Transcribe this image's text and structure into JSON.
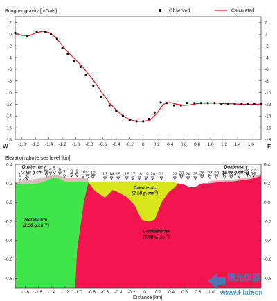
{
  "colors": {
    "observed": "#000000",
    "calculated": "#e0242b",
    "metabazite": "#3ee64a",
    "granodiorite": "#f4144f",
    "caenozoic": "#d9e61c",
    "quaternary": "#d8bcbc",
    "watermark": "#2e87c9"
  },
  "chart_data": [
    {
      "type": "line",
      "title": "Bouguer gravity [mGals]",
      "xlabel": "",
      "xlim": [
        -1.9,
        1.75
      ],
      "ylim": [
        -18,
        3
      ],
      "x_ticks": [
        -1.8,
        -1.6,
        -1.4,
        -1.2,
        -1.0,
        -0.8,
        -0.6,
        -0.4,
        -0.2,
        0,
        0.2,
        0.4,
        0.6,
        0.8,
        1.0,
        1.2,
        1.4,
        1.6
      ],
      "x_tick_labels": [
        "-1.8",
        "-1.6",
        "-1.4",
        "-1.2",
        "-1.0",
        "-0.8",
        "-0.6",
        "-0.4",
        "-0.2",
        "0",
        "0.2",
        "0.4",
        "0.6",
        "0.8",
        "1.0",
        "1.2",
        "1.4",
        "1.6"
      ],
      "y_ticks": [
        2,
        0,
        -2,
        -4,
        -6,
        -8,
        -10,
        -12,
        -14,
        -16,
        -18
      ],
      "y_tick_labels": [
        "2",
        "0",
        "-2",
        "-4",
        "-6",
        "-8",
        "-10",
        "-12",
        "-14",
        "-16",
        "-18"
      ],
      "legend": [
        {
          "name": "Observed",
          "marker": "dot"
        },
        {
          "name": "Calculated",
          "marker": "line"
        }
      ],
      "legend_position": "top-right",
      "direction_labels": {
        "west": "W",
        "east": "E"
      },
      "series": [
        {
          "name": "Observed",
          "x": [
            -1.9,
            -1.73,
            -1.58,
            -1.45,
            -1.37,
            -1.28,
            -1.2,
            -1.12,
            -1.02,
            -0.93,
            -0.85,
            -0.74,
            -0.62,
            -0.5,
            -0.4,
            -0.3,
            -0.2,
            -0.1,
            0.0,
            0.08,
            0.17,
            0.26,
            0.35,
            0.46,
            0.56,
            0.65,
            0.76,
            0.86,
            0.96,
            1.06,
            1.16,
            1.26,
            1.36,
            1.46,
            1.55,
            1.65,
            1.75
          ],
          "y": [
            0.2,
            -0.4,
            0.4,
            0.4,
            0.0,
            -0.8,
            -2.4,
            -3.4,
            -4.6,
            -5.6,
            -7.0,
            -8.8,
            -10.8,
            -12.2,
            -13.1,
            -14.0,
            -14.7,
            -14.9,
            -14.9,
            -14.5,
            -13.4,
            -11.7,
            -11.8,
            -12.2,
            -12.2,
            -11.8,
            -11.8,
            -11.8,
            -11.8,
            -11.8,
            -11.9,
            -12.0,
            -12.0,
            -12.0,
            -12.0,
            -12.0,
            -12.0
          ],
          "y_alt": []
        },
        {
          "name": "Calculated",
          "x": [
            -1.9,
            -1.8,
            -1.7,
            -1.6,
            -1.5,
            -1.4,
            -1.3,
            -1.2,
            -1.1,
            -1.0,
            -0.9,
            -0.8,
            -0.7,
            -0.6,
            -0.5,
            -0.4,
            -0.3,
            -0.2,
            -0.1,
            0.0,
            0.1,
            0.2,
            0.3,
            0.4,
            0.5,
            0.6,
            0.7,
            0.8,
            0.9,
            1.0,
            1.1,
            1.2,
            1.3,
            1.4,
            1.5,
            1.6,
            1.7,
            1.75
          ],
          "y": [
            0.2,
            -0.2,
            -0.3,
            0.2,
            0.5,
            0.3,
            -0.5,
            -2.0,
            -3.3,
            -4.4,
            -5.6,
            -7.0,
            -8.5,
            -10.2,
            -11.8,
            -13.0,
            -14.0,
            -14.6,
            -14.9,
            -14.9,
            -14.7,
            -13.6,
            -12.0,
            -11.7,
            -12.0,
            -12.2,
            -12.1,
            -11.9,
            -11.8,
            -11.8,
            -11.8,
            -11.9,
            -11.9,
            -12.0,
            -12.0,
            -12.0,
            -12.0,
            -12.0
          ]
        }
      ]
    },
    {
      "type": "area",
      "title": "Elevation above sea level [km]",
      "xlabel": "Distance [km]",
      "xlim": [
        -1.95,
        1.75
      ],
      "ylim": [
        -0.9,
        0.4
      ],
      "x_ticks": [
        -1.8,
        -1.6,
        -1.4,
        -1.2,
        -1.0,
        -0.8,
        -0.6,
        -0.4,
        -0.2,
        0,
        0.2,
        0.4,
        0.6,
        0.8,
        1.0,
        1.2,
        1.4,
        1.6
      ],
      "x_tick_labels": [
        "-1.8",
        "-1.6",
        "-1.4",
        "-1.2",
        "-1.0",
        "-0.8",
        "-0.6",
        "-0.4",
        "-0.2",
        "0",
        "0.2",
        "0.4",
        "0.6",
        "0.8",
        "1.0",
        "1.2",
        "1.4",
        "1.6"
      ],
      "y_ticks": [
        0.4,
        0.2,
        0.0,
        -0.2,
        -0.4,
        -0.6,
        -0.8
      ],
      "y_tick_labels": [
        "0.4",
        "0.2",
        "0.0",
        "-0.2",
        "-0.4",
        "-0.6",
        "-0.8"
      ],
      "stations": [
        "1",
        "2",
        "3",
        "4",
        "5",
        "6",
        "7",
        "8",
        "9",
        "10",
        "11",
        "12",
        "13",
        "14",
        "15",
        "16",
        "17",
        "18",
        "19",
        "20",
        "21",
        "22",
        "23",
        "24",
        "25",
        "26",
        "27",
        "28",
        "29",
        "30",
        "31",
        "32",
        "33"
      ],
      "station_x": [
        -1.88,
        -1.77,
        -1.48,
        -1.42,
        -1.36,
        -1.28,
        -1.21,
        -1.1,
        -1.02,
        -0.93,
        -0.86,
        -0.78,
        -0.6,
        -0.5,
        -0.4,
        -0.27,
        -0.18,
        -0.08,
        0.02,
        0.12,
        0.25,
        0.45,
        0.55,
        0.65,
        0.76,
        0.86,
        0.98,
        1.08,
        1.2,
        1.3,
        1.42,
        1.54,
        1.64
      ],
      "station_elev": [
        0.23,
        0.24,
        0.27,
        0.29,
        0.3,
        0.29,
        0.26,
        0.27,
        0.27,
        0.26,
        0.25,
        0.25,
        0.24,
        0.24,
        0.24,
        0.24,
        0.24,
        0.24,
        0.24,
        0.24,
        0.24,
        0.24,
        0.25,
        0.24,
        0.24,
        0.25,
        0.25,
        0.25,
        0.25,
        0.25,
        0.26,
        0.27,
        0.27
      ],
      "bodies": [
        {
          "name": "Metabazite",
          "density_label": "(2.90 g.cm",
          "density_sup": "-3",
          "density_close": ")",
          "x": [
            -1.95,
            -1.95,
            -1.85,
            -1.6,
            -1.48,
            -1.38,
            -1.28,
            -1.2,
            -1.1,
            -1.0,
            -0.93,
            -0.85,
            -0.92,
            -0.96,
            -1.02,
            -1.05,
            -1.95
          ],
          "y": [
            -0.9,
            0.19,
            0.19,
            0.2,
            0.23,
            0.26,
            0.25,
            0.22,
            0.22,
            0.22,
            0.22,
            0.21,
            0.0,
            -0.2,
            -0.5,
            -0.9,
            -0.9
          ]
        },
        {
          "name": "Granodiorite",
          "density_label": "(2.68 g.cm",
          "density_sup": "-3",
          "density_close": ")",
          "x": [
            -1.05,
            -1.02,
            -0.96,
            -0.92,
            -0.85,
            -0.75,
            -0.6,
            -0.48,
            -0.38,
            -0.28,
            -0.16,
            -0.05,
            0.05,
            0.15,
            0.25,
            0.35,
            0.45,
            0.5,
            0.58,
            0.68,
            0.78,
            0.86,
            0.96,
            1.08,
            1.2,
            1.32,
            1.42,
            1.52,
            1.62,
            1.75,
            1.75,
            -1.05
          ],
          "y": [
            -0.9,
            -0.5,
            -0.2,
            0.0,
            0.21,
            0.12,
            0.05,
            0.13,
            0.1,
            0.06,
            -0.02,
            -0.18,
            -0.2,
            -0.18,
            0.0,
            0.1,
            0.16,
            0.2,
            0.19,
            0.16,
            0.17,
            0.2,
            0.2,
            0.21,
            0.22,
            0.22,
            0.23,
            0.24,
            0.25,
            0.28,
            -0.9,
            -0.9
          ]
        },
        {
          "name": "Caenozoic",
          "density_label": "(2.18 g.cm",
          "density_sup": "-3",
          "density_close": ")",
          "x": [
            -0.85,
            -0.6,
            -0.4,
            -0.2,
            0.0,
            0.2,
            0.45,
            0.5,
            0.45,
            0.35,
            0.25,
            0.15,
            0.05,
            -0.05,
            -0.16,
            -0.28,
            -0.38,
            -0.48,
            -0.6,
            -0.75,
            -0.85
          ],
          "y": [
            0.21,
            0.22,
            0.22,
            0.22,
            0.22,
            0.22,
            0.21,
            0.2,
            0.16,
            0.1,
            0.0,
            -0.18,
            -0.2,
            -0.18,
            -0.02,
            0.06,
            0.1,
            0.13,
            0.05,
            0.12,
            0.21
          ]
        },
        {
          "name": "Quaternary",
          "density_label": "(2.00 g.cm",
          "density_sup": "-3",
          "density_close": ")",
          "x": [
            -1.95,
            -1.85,
            -1.6,
            -1.48,
            -1.38,
            -1.28,
            -1.2,
            -1.1,
            -1.0,
            -0.93,
            -0.85,
            -0.85,
            -0.93,
            -1.0,
            -1.1,
            -1.2,
            -1.28,
            -1.38,
            -1.48,
            -1.6,
            -1.85,
            -1.95
          ],
          "y": [
            0.21,
            0.23,
            0.25,
            0.27,
            0.29,
            0.28,
            0.26,
            0.26,
            0.26,
            0.26,
            0.24,
            0.21,
            0.22,
            0.22,
            0.22,
            0.22,
            0.25,
            0.26,
            0.23,
            0.2,
            0.19,
            0.19
          ]
        },
        {
          "name": "Quaternary right",
          "x": [
            0.96,
            1.08,
            1.2,
            1.32,
            1.42,
            1.52,
            1.62,
            1.75,
            1.75,
            1.62,
            1.52,
            1.42,
            1.32,
            1.2,
            1.08,
            0.96
          ],
          "y": [
            0.22,
            0.23,
            0.24,
            0.24,
            0.25,
            0.26,
            0.27,
            0.3,
            0.28,
            0.25,
            0.24,
            0.23,
            0.22,
            0.22,
            0.21,
            0.2
          ]
        }
      ],
      "labels": {
        "quaternary_left": "Quaternary",
        "quaternary_right": "Quaternary",
        "caenozoic": "Caenozoic",
        "metabazite": "Metabazite",
        "granodiorite": "Granodiorite"
      }
    }
  ],
  "watermark": {
    "text_cn": "锦光仪器",
    "url": "www.f-lab.cn"
  }
}
